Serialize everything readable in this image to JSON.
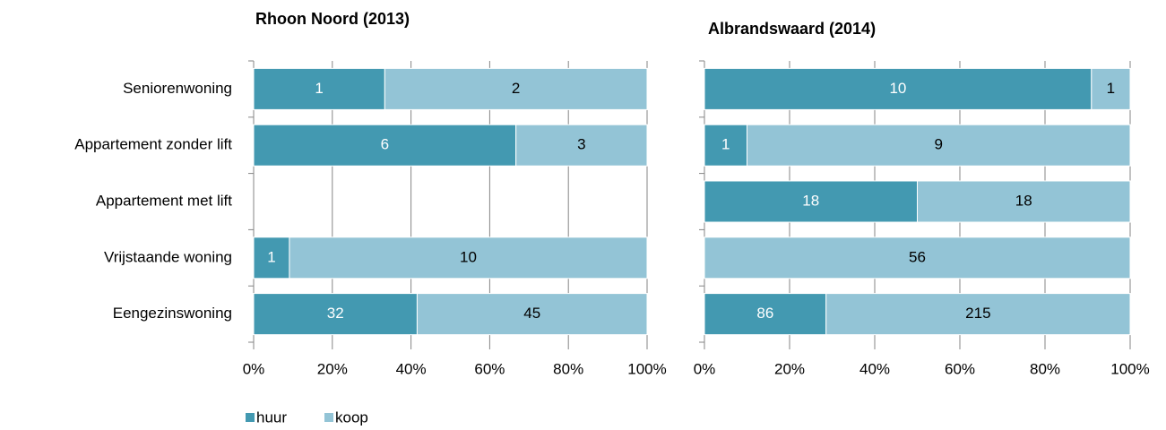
{
  "chart_data": [
    {
      "type": "bar",
      "orientation": "horizontal",
      "stacked": "percent",
      "title": "Rhoon Noord (2013)",
      "categories": [
        "Seniorenwoning",
        "Appartement zonder lift",
        "Appartement met lift",
        "Vrijstaande woning",
        "Eengezinswoning"
      ],
      "series": [
        {
          "name": "huur",
          "color": "#4399b1",
          "values": [
            1,
            6,
            null,
            1,
            32
          ]
        },
        {
          "name": "koop",
          "color": "#93c4d6",
          "values": [
            2,
            3,
            null,
            10,
            45
          ]
        }
      ],
      "xlim": [
        0,
        100
      ],
      "xticks": [
        {
          "value": 0,
          "label": "0%"
        },
        {
          "value": 20,
          "label": "20%"
        },
        {
          "value": 40,
          "label": "40%"
        },
        {
          "value": 60,
          "label": "60%"
        },
        {
          "value": 80,
          "label": "80%"
        },
        {
          "value": 100,
          "label": "100%"
        }
      ],
      "grid": true,
      "legend": "bottom"
    },
    {
      "type": "bar",
      "orientation": "horizontal",
      "stacked": "percent",
      "title": "Albrandswaard (2014)",
      "series": [
        {
          "color": "#4399b1",
          "values": [
            10,
            1,
            18,
            null,
            86
          ]
        },
        {
          "color": "#93c4d6",
          "values": [
            1,
            9,
            18,
            56,
            215
          ]
        }
      ],
      "xlim": [
        0,
        100
      ],
      "xticks": [
        {
          "value": 0,
          "label": "0%"
        },
        {
          "value": 20,
          "label": "20%"
        },
        {
          "value": 40,
          "label": "40%"
        },
        {
          "value": 60,
          "label": "60%"
        },
        {
          "value": 80,
          "label": "80%"
        },
        {
          "value": 100,
          "label": "100%"
        }
      ],
      "grid": true
    }
  ]
}
